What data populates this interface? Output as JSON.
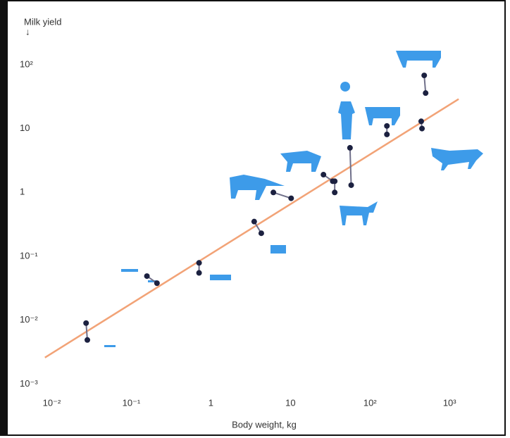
{
  "chart_data": {
    "type": "scatter",
    "y_label": "Milk yield",
    "x_label": "Body weight, kg",
    "log_x": true,
    "log_y": true,
    "xlim": [
      0.0035,
      4500
    ],
    "ylim": [
      0.00025,
      800
    ],
    "xticks": [
      {
        "value": 0.01,
        "label": "10⁻²"
      },
      {
        "value": 0.1,
        "label": "10⁻¹"
      },
      1,
      10,
      {
        "value": 100,
        "label": "10²"
      },
      {
        "value": 1000,
        "label": "10³"
      }
    ],
    "yticks": [
      {
        "value": 0.001,
        "label": "10⁻³"
      },
      {
        "value": 0.01,
        "label": "10⁻²"
      },
      {
        "value": 0.1,
        "label": "10⁻¹"
      },
      1,
      10,
      {
        "value": 100,
        "label": "10²"
      }
    ],
    "point_color": "#1c2140",
    "link_color": "#70708a",
    "pairs": [
      {
        "x": [
          0.027,
          0.028
        ],
        "y": [
          0.009,
          0.0049
        ]
      },
      {
        "x": [
          0.157,
          0.21
        ],
        "y": [
          0.049,
          0.038
        ]
      },
      {
        "x": [
          0.71,
          0.71
        ],
        "y": [
          0.079,
          0.055
        ]
      },
      {
        "x": [
          3.5,
          4.3
        ],
        "y": [
          0.35,
          0.23
        ]
      },
      {
        "x": [
          6.1,
          10.2
        ],
        "y": [
          1.0,
          0.81
        ]
      },
      {
        "x": [
          26,
          34
        ],
        "y": [
          1.9,
          1.5
        ]
      },
      {
        "x": [
          36,
          36
        ],
        "y": [
          1.5,
          1.0
        ]
      },
      {
        "x": [
          56,
          58
        ],
        "y": [
          5.0,
          1.3
        ]
      },
      {
        "x": [
          163,
          163
        ],
        "y": [
          11,
          8.1
        ]
      },
      {
        "x": [
          440,
          450
        ],
        "y": [
          13,
          10
        ]
      },
      {
        "x": [
          480,
          500
        ],
        "y": [
          68,
          36
        ]
      }
    ],
    "fit": {
      "color": "#f2a377",
      "x": [
        0.0082,
        1300
      ],
      "y": [
        0.0026,
        29
      ]
    }
  }
}
